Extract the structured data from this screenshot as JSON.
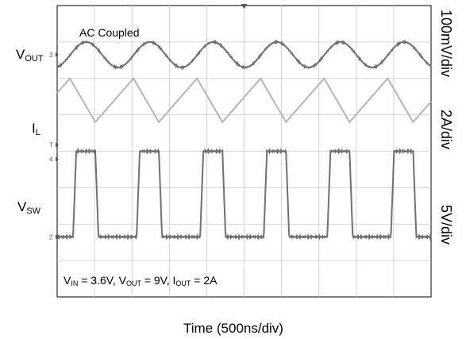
{
  "chart_data": {
    "type": "line",
    "annotation": "AC Coupled",
    "xlabel": "Time (500ns/div)",
    "conditions": {
      "vin_label": "V",
      "vin_sub": "IN",
      "vin_value": " = 3.6V, ",
      "vout_label": "V",
      "vout_sub": "OUT",
      "vout_value": " = 9V, ",
      "iout_label": "I",
      "iout_sub": "OUT",
      "iout_value": " = 2A"
    },
    "grid": true,
    "x_divisions": 10,
    "y_divisions": 8,
    "switching_period_div": 1.7,
    "duty_cycle": 0.6,
    "series": [
      {
        "label": "V",
        "sub": "OUT",
        "scale": "100mV/div",
        "color": "#707070",
        "shape": "sine",
        "center_div": 1.35,
        "amplitude_div": 0.35,
        "phase": -1.3
      },
      {
        "label": "I",
        "sub": "L",
        "scale": "2A/div",
        "color": "#b4b4b4",
        "shape": "triangle",
        "center_div": 2.6,
        "amplitude_div": 0.6,
        "phase_frac": 0.4
      },
      {
        "label": "V",
        "sub": "SW",
        "scale": "5V/div",
        "color": "#707070",
        "shape": "square",
        "low_div": 6.35,
        "high_div": 4.0,
        "phase_frac": 0.35
      }
    ],
    "channel_markers": [
      "3",
      "T",
      "4",
      "2"
    ]
  }
}
